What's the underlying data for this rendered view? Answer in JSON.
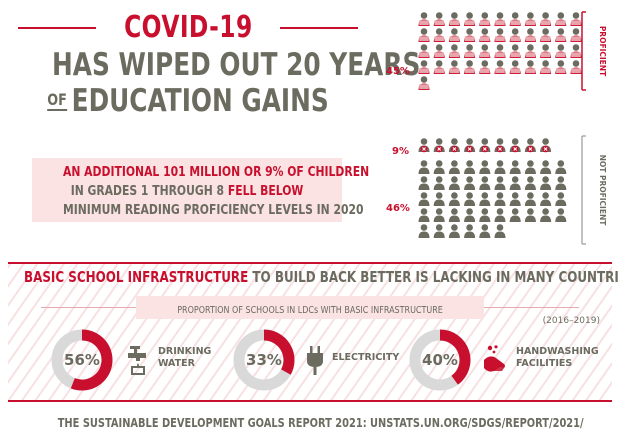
{
  "title": {
    "line1": "COVID-19",
    "line2": "HAS WIPED OUT 20 YEARS",
    "of": "OF",
    "line3": "EDUCATION GAINS"
  },
  "claim": {
    "line1": "AN ADDITIONAL 101 MILLION OR 9% OF CHILDREN",
    "line2_a": "IN GRADES 1 THROUGH 8",
    "line2_b": "FELL BELOW",
    "line3": "MINIMUM READING PROFICIENCY LEVELS IN 2020"
  },
  "infrastructure": {
    "heading_red": "BASIC SCHOOL INFRASTRUCTURE",
    "heading_grey": "TO BUILD BACK BETTER IS LACKING IN MANY COUNTRIES",
    "subheading": "PROPORTION OF SCHOOLS IN LDCs WITH BASIC INFRASTRUCTURE",
    "years": "(2016–2019)"
  },
  "footer": "THE SUSTAINABLE DEVELOPMENT GOALS REPORT 2021: UNSTATS.UN.ORG/SDGS/REPORT/2021/",
  "colors": {
    "red": "#c8102e",
    "pink": "#e8a5ab",
    "grey": "#6b6b5f",
    "light_grey": "#d9d9d9"
  },
  "chart_data": [
    {
      "type": "pictogram",
      "segments": [
        {
          "name": "PROFICIENT",
          "percent_label": "45%",
          "value": 45,
          "icon": "reading-child-icon"
        },
        {
          "name": "",
          "percent_label": "9%",
          "value": 9,
          "icon": "cross-child-icon"
        },
        {
          "name": "NOT PROFICIENT",
          "percent_label": "46%",
          "value": 46,
          "icon": "child-icon"
        }
      ]
    },
    {
      "type": "pie",
      "categories": [
        "DRINKING WATER",
        "ELECTRICITY",
        "HANDWASHING FACILITIES"
      ],
      "values": [
        56,
        33,
        40
      ],
      "labels": [
        "56%",
        "33%",
        "40%"
      ],
      "icons": [
        "tap-icon",
        "plug-icon",
        "handwashing-icon"
      ]
    }
  ]
}
